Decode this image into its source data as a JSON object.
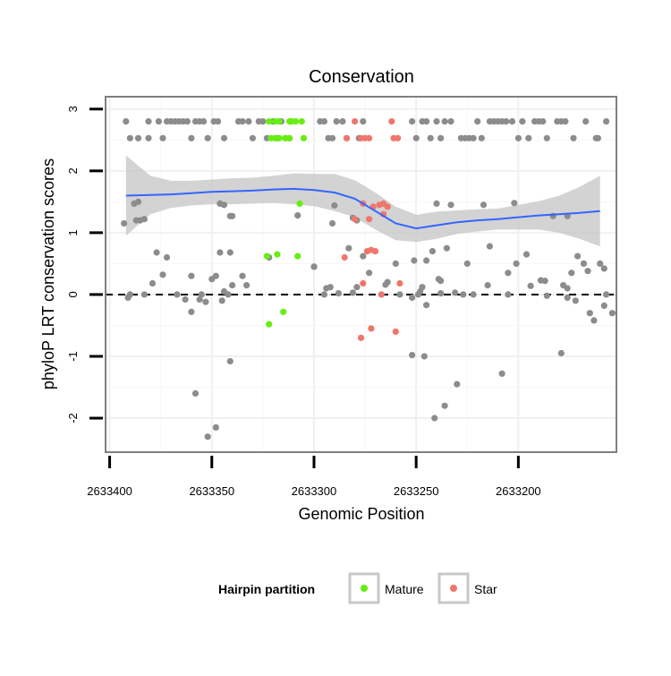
{
  "chart_data": {
    "type": "scatter",
    "title": "Conservation",
    "xlabel": "Genomic Position",
    "ylabel": "phyloP LRT conservation scores",
    "x_reversed": true,
    "xlim": [
      2633152,
      2633402
    ],
    "ylim": [
      -2.55,
      3.2
    ],
    "x_ticks": [
      2633400,
      2633350,
      2633300,
      2633250,
      2633200
    ],
    "x_tick_labels": [
      "2633400",
      "2633350",
      "2633300",
      "2633250",
      "2633200"
    ],
    "y_ticks": [
      -2,
      -1,
      0,
      1,
      2,
      3
    ],
    "y_tick_labels": [
      "-2",
      "-1",
      "0",
      "1",
      "2",
      "3"
    ],
    "reference_line": {
      "y": 0,
      "style": "dashed"
    },
    "grid": true,
    "legend": {
      "title": "Hairpin partition",
      "position": "bottom",
      "entries": [
        {
          "label": "Mature",
          "color": "#66ee11"
        },
        {
          "label": "Star",
          "color": "#f0766c"
        }
      ]
    },
    "colors": {
      "default_point": "#8c8c8c",
      "smooth_line": "#3366ff",
      "confidence_band": "#c8c8c8"
    },
    "series": [
      {
        "group": "other",
        "color": "#8c8c8c",
        "points": [
          [
            2633392,
            2.8
          ],
          [
            2633390,
            2.53
          ],
          [
            2633386,
            2.53
          ],
          [
            2633381,
            2.8
          ],
          [
            2633381,
            2.53
          ],
          [
            2633376,
            2.8
          ],
          [
            2633374,
            2.53
          ],
          [
            2633372,
            2.8
          ],
          [
            2633370,
            2.8
          ],
          [
            2633368,
            2.8
          ],
          [
            2633366,
            2.8
          ],
          [
            2633364,
            2.8
          ],
          [
            2633362,
            2.8
          ],
          [
            2633360,
            2.53
          ],
          [
            2633358,
            2.8
          ],
          [
            2633356,
            2.8
          ],
          [
            2633354,
            2.8
          ],
          [
            2633352,
            2.53
          ],
          [
            2633349,
            2.8
          ],
          [
            2633347,
            2.8
          ],
          [
            2633344,
            2.53
          ],
          [
            2633337,
            2.8
          ],
          [
            2633335,
            2.8
          ],
          [
            2633332,
            2.8
          ],
          [
            2633330,
            2.53
          ],
          [
            2633327,
            2.8
          ],
          [
            2633325,
            2.8
          ],
          [
            2633323,
            2.53
          ],
          [
            2633320,
            2.8
          ],
          [
            2633318,
            2.53
          ],
          [
            2633316,
            2.8
          ],
          [
            2633314,
            2.53
          ],
          [
            2633312,
            2.53
          ],
          [
            2633297,
            2.8
          ],
          [
            2633295,
            2.8
          ],
          [
            2633293,
            2.53
          ],
          [
            2633291,
            2.53
          ],
          [
            2633289,
            2.8
          ],
          [
            2633286,
            2.8
          ],
          [
            2633284,
            2.53
          ],
          [
            2633278,
            2.53
          ],
          [
            2633276,
            2.8
          ],
          [
            2633252,
            2.8
          ],
          [
            2633250,
            2.53
          ],
          [
            2633247,
            2.8
          ],
          [
            2633245,
            2.8
          ],
          [
            2633243,
            2.53
          ],
          [
            2633240,
            2.8
          ],
          [
            2633238,
            2.53
          ],
          [
            2633236,
            2.8
          ],
          [
            2633233,
            2.8
          ],
          [
            2633228,
            2.53
          ],
          [
            2633226,
            2.53
          ],
          [
            2633224,
            2.53
          ],
          [
            2633222,
            2.53
          ],
          [
            2633220,
            2.8
          ],
          [
            2633218,
            2.53
          ],
          [
            2633214,
            2.8
          ],
          [
            2633212,
            2.8
          ],
          [
            2633210,
            2.8
          ],
          [
            2633208,
            2.8
          ],
          [
            2633206,
            2.8
          ],
          [
            2633203,
            2.8
          ],
          [
            2633200,
            2.53
          ],
          [
            2633198,
            2.8
          ],
          [
            2633195,
            2.53
          ],
          [
            2633192,
            2.8
          ],
          [
            2633190,
            2.8
          ],
          [
            2633188,
            2.8
          ],
          [
            2633186,
            2.53
          ],
          [
            2633181,
            2.8
          ],
          [
            2633179,
            2.8
          ],
          [
            2633177,
            2.8
          ],
          [
            2633173,
            2.53
          ],
          [
            2633167,
            2.8
          ],
          [
            2633162,
            2.53
          ],
          [
            2633161,
            2.53
          ],
          [
            2633157,
            2.8
          ],
          [
            2633393,
            1.15
          ],
          [
            2633388,
            1.47
          ],
          [
            2633387,
            1.2
          ],
          [
            2633386,
            1.5
          ],
          [
            2633385,
            1.2
          ],
          [
            2633383,
            1.22
          ],
          [
            2633346,
            1.47
          ],
          [
            2633344,
            1.45
          ],
          [
            2633341,
            1.27
          ],
          [
            2633340,
            1.27
          ],
          [
            2633308,
            1.28
          ],
          [
            2633291,
            1.15
          ],
          [
            2633290,
            1.44
          ],
          [
            2633281,
            1.24
          ],
          [
            2633279,
            1.2
          ],
          [
            2633240,
            1.47
          ],
          [
            2633233,
            1.45
          ],
          [
            2633217,
            1.45
          ],
          [
            2633202,
            1.48
          ],
          [
            2633183,
            1.27
          ],
          [
            2633176,
            1.27
          ],
          [
            2633377,
            0.68
          ],
          [
            2633372,
            0.6
          ],
          [
            2633360,
            0.3
          ],
          [
            2633346,
            0.68
          ],
          [
            2633344,
            0.05
          ],
          [
            2633335,
            0.3
          ],
          [
            2633322,
            0.6
          ],
          [
            2633300,
            0.45
          ],
          [
            2633294,
            0.1
          ],
          [
            2633292,
            0.12
          ],
          [
            2633283,
            0.75
          ],
          [
            2633279,
            0.12
          ],
          [
            2633276,
            0.62
          ],
          [
            2633273,
            0.35
          ],
          [
            2633264,
            0.2
          ],
          [
            2633260,
            0.5
          ],
          [
            2633251,
            0.55
          ],
          [
            2633248,
            0.05
          ],
          [
            2633247,
            0.12
          ],
          [
            2633245,
            0.55
          ],
          [
            2633242,
            0.7
          ],
          [
            2633239,
            0.25
          ],
          [
            2633238,
            0.22
          ],
          [
            2633235,
            0.75
          ],
          [
            2633225,
            0.5
          ],
          [
            2633214,
            0.78
          ],
          [
            2633205,
            0.35
          ],
          [
            2633201,
            0.5
          ],
          [
            2633196,
            0.65
          ],
          [
            2633189,
            0.23
          ],
          [
            2633187,
            0.22
          ],
          [
            2633178,
            0.15
          ],
          [
            2633176,
            0.1
          ],
          [
            2633174,
            0.35
          ],
          [
            2633171,
            0.62
          ],
          [
            2633168,
            0.5
          ],
          [
            2633166,
            0.38
          ],
          [
            2633160,
            0.5
          ],
          [
            2633158,
            0.42
          ],
          [
            2633391,
            -0.05
          ],
          [
            2633390,
            0.0
          ],
          [
            2633383,
            0.0
          ],
          [
            2633379,
            0.18
          ],
          [
            2633374,
            0.32
          ],
          [
            2633367,
            0.0
          ],
          [
            2633363,
            -0.08
          ],
          [
            2633360,
            -0.28
          ],
          [
            2633355,
            0.0
          ],
          [
            2633350,
            0.25
          ],
          [
            2633348,
            0.3
          ],
          [
            2633345,
            -0.1
          ],
          [
            2633342,
            0.0
          ],
          [
            2633340,
            0.15
          ],
          [
            2633333,
            0.15
          ],
          [
            2633322,
            0.6
          ],
          [
            2633300,
            0.45
          ],
          [
            2633295,
            0.0
          ],
          [
            2633288,
            0.02
          ],
          [
            2633281,
            0.03
          ],
          [
            2633265,
            0.16
          ],
          [
            2633258,
            0.0
          ],
          [
            2633252,
            -0.05
          ],
          [
            2633249,
            0.0
          ],
          [
            2633245,
            -0.17
          ],
          [
            2633238,
            0.02
          ],
          [
            2633231,
            0.03
          ],
          [
            2633227,
            0.0
          ],
          [
            2633222,
            0.0
          ],
          [
            2633215,
            0.15
          ],
          [
            2633205,
            0.0
          ],
          [
            2633194,
            0.14
          ],
          [
            2633186,
            -0.02
          ],
          [
            2633176,
            -0.05
          ],
          [
            2633172,
            -0.1
          ],
          [
            2633163,
            -0.42
          ],
          [
            2633157,
            0.0
          ],
          [
            2633154,
            -0.3
          ],
          [
            2633252,
            -0.98
          ],
          [
            2633246,
            -1.0
          ],
          [
            2633241,
            -2.0
          ],
          [
            2633236,
            -1.8
          ],
          [
            2633230,
            -1.45
          ],
          [
            2633208,
            -1.28
          ],
          [
            2633179,
            -0.95
          ],
          [
            2633165,
            -0.3
          ],
          [
            2633158,
            -0.18
          ],
          [
            2633358,
            -1.6
          ],
          [
            2633352,
            -2.3
          ],
          [
            2633348,
            -2.15
          ],
          [
            2633341,
            -1.08
          ],
          [
            2633356,
            -0.08
          ],
          [
            2633353,
            -0.12
          ],
          [
            2633341,
            0.68
          ]
        ]
      },
      {
        "group": "Mature",
        "color": "#66ee11",
        "points": [
          [
            2633322,
            2.8
          ],
          [
            2633319,
            2.8
          ],
          [
            2633317,
            2.8
          ],
          [
            2633312,
            2.8
          ],
          [
            2633311,
            2.8
          ],
          [
            2633309,
            2.8
          ],
          [
            2633306,
            2.8
          ],
          [
            2633321,
            2.53
          ],
          [
            2633319,
            2.53
          ],
          [
            2633317,
            2.53
          ],
          [
            2633314,
            2.53
          ],
          [
            2633312,
            2.53
          ],
          [
            2633305,
            2.53
          ],
          [
            2633307,
            1.47
          ],
          [
            2633323,
            0.62
          ],
          [
            2633318,
            0.65
          ],
          [
            2633308,
            0.62
          ],
          [
            2633322,
            -0.48
          ],
          [
            2633315,
            -0.28
          ]
        ]
      },
      {
        "group": "Star",
        "color": "#f0766c",
        "points": [
          [
            2633280,
            2.8
          ],
          [
            2633262,
            2.8
          ],
          [
            2633284,
            2.53
          ],
          [
            2633277,
            2.53
          ],
          [
            2633275,
            2.53
          ],
          [
            2633273,
            2.53
          ],
          [
            2633259,
            2.53
          ],
          [
            2633261,
            2.53
          ],
          [
            2633276,
            1.47
          ],
          [
            2633271,
            1.42
          ],
          [
            2633268,
            1.45
          ],
          [
            2633266,
            1.47
          ],
          [
            2633264,
            1.42
          ],
          [
            2633280,
            1.22
          ],
          [
            2633273,
            1.22
          ],
          [
            2633266,
            1.3
          ],
          [
            2633285,
            0.6
          ],
          [
            2633274,
            0.7
          ],
          [
            2633272,
            0.72
          ],
          [
            2633270,
            0.7
          ],
          [
            2633276,
            0.18
          ],
          [
            2633267,
            0.0
          ],
          [
            2633258,
            0.18
          ],
          [
            2633277,
            -0.7
          ],
          [
            2633272,
            -0.55
          ],
          [
            2633260,
            -0.6
          ]
        ]
      }
    ],
    "smooth": {
      "x": [
        2633392,
        2633380,
        2633370,
        2633360,
        2633350,
        2633340,
        2633330,
        2633320,
        2633310,
        2633300,
        2633290,
        2633280,
        2633270,
        2633260,
        2633250,
        2633240,
        2633230,
        2633220,
        2633210,
        2633200,
        2633190,
        2633180,
        2633170,
        2633160
      ],
      "y": [
        1.6,
        1.61,
        1.62,
        1.64,
        1.66,
        1.67,
        1.68,
        1.7,
        1.71,
        1.69,
        1.65,
        1.55,
        1.35,
        1.15,
        1.07,
        1.12,
        1.17,
        1.2,
        1.22,
        1.25,
        1.28,
        1.3,
        1.32,
        1.35
      ],
      "lower": [
        0.95,
        1.3,
        1.4,
        1.44,
        1.46,
        1.46,
        1.47,
        1.48,
        1.46,
        1.43,
        1.35,
        1.25,
        1.05,
        0.88,
        0.85,
        0.9,
        0.98,
        1.02,
        1.05,
        1.05,
        1.05,
        1.0,
        0.9,
        0.78
      ],
      "upper": [
        2.25,
        1.92,
        1.84,
        1.84,
        1.86,
        1.88,
        1.89,
        1.92,
        1.96,
        1.95,
        1.95,
        1.85,
        1.65,
        1.42,
        1.29,
        1.34,
        1.36,
        1.38,
        1.39,
        1.45,
        1.51,
        1.6,
        1.74,
        1.92
      ]
    }
  }
}
